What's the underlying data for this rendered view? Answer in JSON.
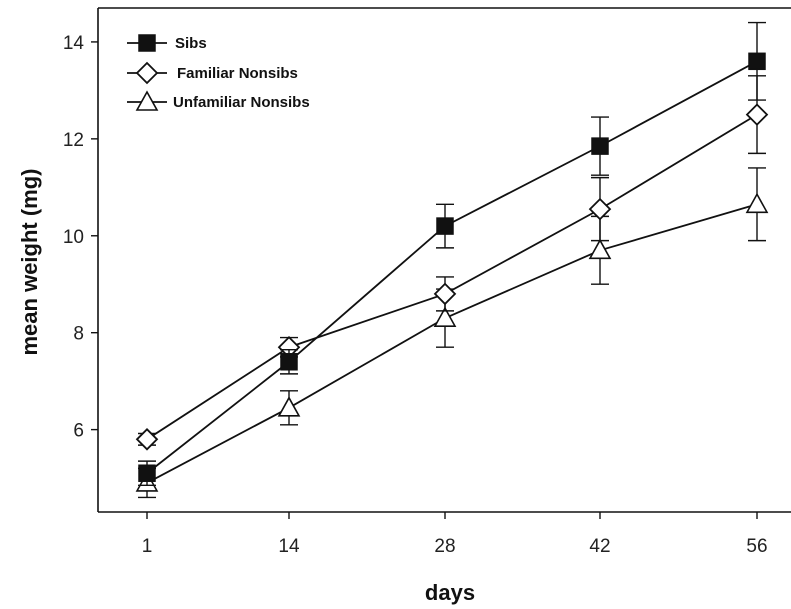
{
  "chart_data": {
    "type": "line",
    "title": "",
    "xlabel": "days",
    "ylabel": "mean weight (mg)",
    "x": [
      1,
      14,
      28,
      42,
      56
    ],
    "x_tick_labels": [
      "1",
      "14",
      "28",
      "42",
      "56"
    ],
    "yticks": [
      6,
      8,
      10,
      12,
      14
    ],
    "y_tick_labels": [
      "6",
      "8",
      "10",
      "12",
      "14"
    ],
    "ylim": [
      4.3,
      14.7
    ],
    "grid": false,
    "legend_position": "top-left",
    "series": [
      {
        "name": "Sibs",
        "marker": "filled-square",
        "color": "#111111",
        "values": [
          5.1,
          7.4,
          10.2,
          11.85,
          13.6
        ],
        "error": [
          0.25,
          0.25,
          0.45,
          0.6,
          0.8
        ]
      },
      {
        "name": "Familiar Nonsibs",
        "marker": "open-diamond",
        "color": "#111111",
        "values": [
          5.8,
          7.7,
          8.8,
          10.55,
          12.5
        ],
        "error": [
          0.12,
          0.2,
          0.35,
          0.65,
          0.8
        ]
      },
      {
        "name": "Unfamiliar Nonsibs",
        "marker": "open-triangle",
        "color": "#111111",
        "values": [
          4.9,
          6.45,
          8.3,
          9.7,
          10.65
        ],
        "error": [
          0.3,
          0.35,
          0.6,
          0.7,
          0.75
        ]
      }
    ]
  }
}
